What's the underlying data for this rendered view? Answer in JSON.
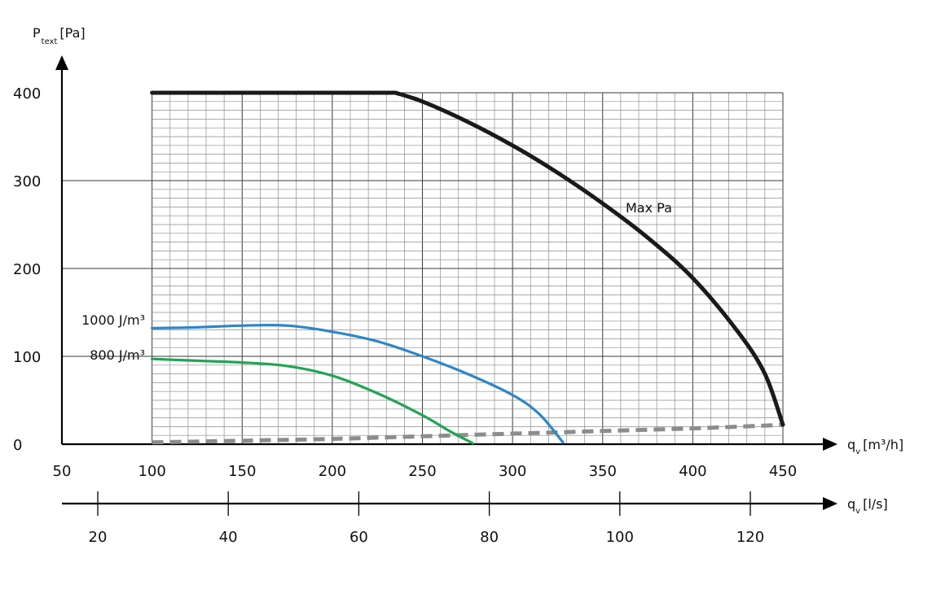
{
  "chart_data": {
    "type": "line",
    "ylabel_main": "P",
    "ylabel_sub": "text",
    "ylabel_unit": "[Pa]",
    "xlabel_main": "q",
    "xlabel_sub": "v",
    "xlabel_unit": "[m³/h]",
    "x2label_main": "q",
    "x2label_sub": "v",
    "x2label_unit": "[l/s]",
    "xlim": [
      50,
      450
    ],
    "ylim": [
      0,
      400
    ],
    "x2lim": [
      15,
      125
    ],
    "x_ticks": [
      50,
      100,
      150,
      200,
      250,
      300,
      350,
      400,
      450
    ],
    "y_ticks": [
      0,
      100,
      200,
      300,
      400
    ],
    "x2_ticks": [
      20,
      40,
      60,
      80,
      100,
      120
    ],
    "grid": true,
    "series": [
      {
        "name": "Max Pa",
        "color": "#1a1a1a",
        "x": [
          100,
          235,
          250,
          275,
          300,
          325,
          350,
          375,
          400,
          425,
          440,
          450
        ],
        "y": [
          400,
          400,
          390,
          367,
          340,
          309,
          274,
          235,
          189,
          128,
          80,
          22
        ]
      },
      {
        "name": "1000 J/m³",
        "color": "#2e86c8",
        "x": [
          100,
          125,
          150,
          175,
          200,
          225,
          250,
          275,
          300,
          315,
          328
        ],
        "y": [
          132,
          133,
          135,
          135,
          128,
          117,
          100,
          80,
          56,
          34,
          2
        ]
      },
      {
        "name": "800 J/m³",
        "color": "#22a455",
        "x": [
          100,
          125,
          150,
          175,
          200,
          225,
          250,
          265,
          278
        ],
        "y": [
          97,
          95,
          93,
          89,
          78,
          58,
          33,
          15,
          1
        ]
      },
      {
        "name": "",
        "color": "#8c8c8c",
        "dashed": true,
        "x": [
          100,
          150,
          200,
          250,
          300,
          350,
          400,
          450
        ],
        "y": [
          2,
          4,
          6,
          9,
          12,
          15,
          18,
          22
        ]
      }
    ]
  }
}
